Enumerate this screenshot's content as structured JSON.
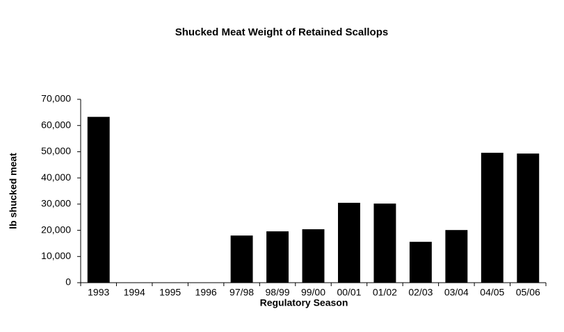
{
  "chart_data": {
    "type": "bar",
    "title": "Shucked Meat Weight of Retained Scallops",
    "x_label": "Regulatory Season",
    "y_label": "lb shucked meat",
    "categories": [
      "1993",
      "1994",
      "1995",
      "1996",
      "97/98",
      "98/99",
      "99/00",
      "00/01",
      "01/02",
      "02/03",
      "03/04",
      "04/05",
      "05/06"
    ],
    "values": [
      63300,
      null,
      null,
      null,
      18000,
      19600,
      20400,
      30500,
      30200,
      15600,
      20100,
      49600,
      49300
    ],
    "color": "#000000",
    "ylim": [
      0,
      70000
    ],
    "yticks": [
      0,
      {
        "value": 10000,
        "label": "10,000"
      },
      {
        "value": 20000,
        "label": "20,000"
      },
      {
        "value": 30000,
        "label": "30,000"
      },
      {
        "value": 40000,
        "label": "40,000"
      },
      {
        "value": 50000,
        "label": "50,000"
      },
      {
        "value": 60000,
        "label": "60,000"
      },
      {
        "value": 70000,
        "label": "70,000"
      }
    ],
    "grid": false
  }
}
